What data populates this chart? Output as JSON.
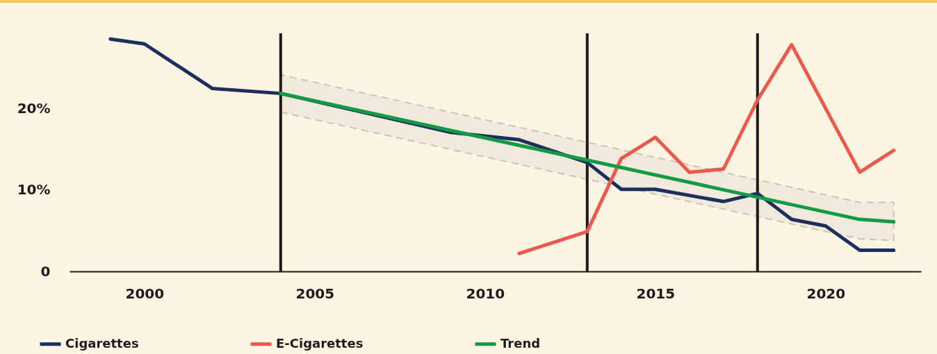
{
  "chart_data": {
    "type": "line",
    "xlim": [
      1997.8,
      2022.8
    ],
    "xticks": [
      2000,
      2005,
      2010,
      2015,
      2020
    ],
    "ylim": [
      0,
      29.3
    ],
    "yticks": [
      0,
      {
        "value": 10,
        "label": "10%"
      },
      {
        "value": 20,
        "label": "20%"
      }
    ],
    "series": [
      {
        "name": "Cigarettes",
        "color": "#1c2e5e",
        "x": [
          1999,
          2000,
          2002,
          2004,
          2009,
          2011,
          2013,
          2014,
          2015,
          2017,
          2018,
          2019,
          2020,
          2021,
          2022
        ],
        "values": [
          28.6,
          28.0,
          22.5,
          21.9,
          17.1,
          16.2,
          13.4,
          10.1,
          10.1,
          8.6,
          9.6,
          6.4,
          5.6,
          2.6,
          2.6
        ]
      },
      {
        "name": "E-Cigarettes",
        "color": "#f0574b",
        "x": [
          2011,
          2013,
          2014,
          2015,
          2016,
          2017,
          2018,
          2019,
          2021,
          2022
        ],
        "values": [
          2.2,
          4.9,
          13.9,
          16.5,
          12.2,
          12.6,
          21.1,
          27.9,
          12.2,
          14.9
        ]
      },
      {
        "name": "Trend",
        "type": "line",
        "color": "#129a47",
        "x": [
          2004,
          2021,
          2022
        ],
        "values": [
          21.9,
          6.4,
          6.1
        ],
        "lower": [
          19.6,
          4.0,
          3.8
        ],
        "upper": [
          24.2,
          8.5,
          8.5
        ]
      }
    ],
    "ref_lines": [
      {
        "axis": "x",
        "value": 2004,
        "color": "#1e1a1a"
      },
      {
        "axis": "x",
        "value": 2013,
        "color": "#1e1a1a"
      },
      {
        "axis": "x",
        "value": 2018,
        "color": "#1e1a1a"
      }
    ],
    "grid": false,
    "legend": "bottom left",
    "marker": "none",
    "line_style": "solid"
  }
}
